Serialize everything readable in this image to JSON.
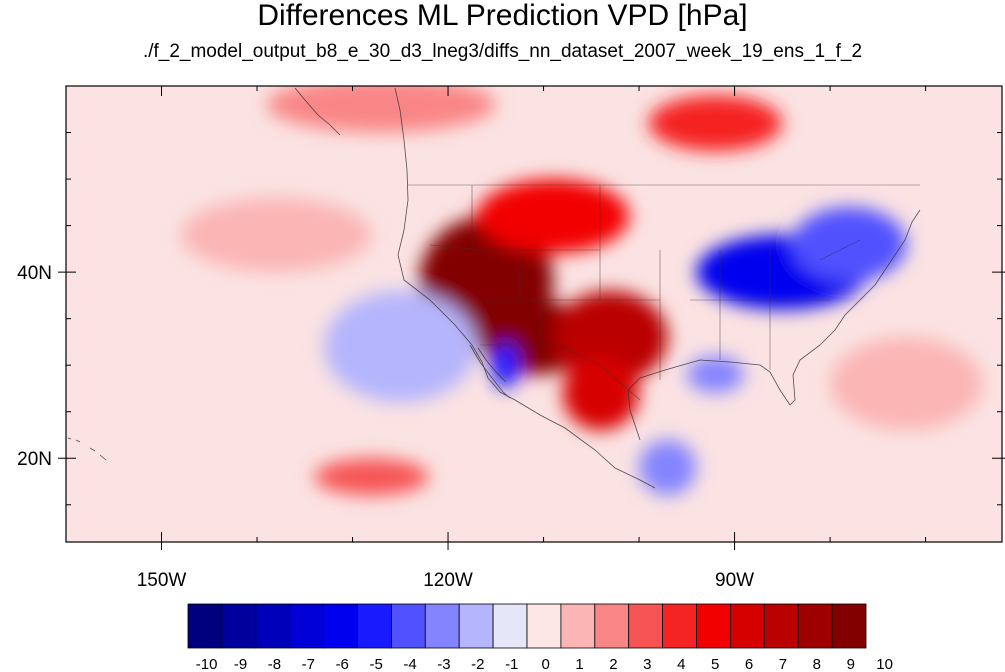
{
  "title": "Differences ML Prediction VPD [hPa]",
  "subtitle": "./f_2_model_output_b8_e_30_d3_lneg3/diffs_nn_dataset_2007_week_19_ens_1_f_2",
  "map": {
    "projection": "equirectangular",
    "lon_range": [
      -160,
      -62
    ],
    "lat_range": [
      11,
      60
    ],
    "lon_ticks": [
      {
        "value": -150,
        "label": "150W"
      },
      {
        "value": -120,
        "label": "120W"
      },
      {
        "value": -90,
        "label": "90W"
      }
    ],
    "lat_ticks": [
      {
        "value": 40,
        "label": "40N"
      },
      {
        "value": 20,
        "label": "20N"
      }
    ],
    "field_regions": [
      {
        "name": "west-us-high",
        "lon": -116,
        "lat": 39,
        "rlon": 7,
        "rlat": 7,
        "level": 10
      },
      {
        "name": "southwest-desert",
        "lon": -111,
        "lat": 33,
        "rlon": 6,
        "rlat": 4,
        "level": 10
      },
      {
        "name": "southern-plains",
        "lon": -103,
        "lat": 33,
        "rlon": 6,
        "rlat": 5,
        "level": 7
      },
      {
        "name": "northern-rockies",
        "lon": -109,
        "lat": 46,
        "rlon": 8,
        "rlat": 4,
        "level": 5
      },
      {
        "name": "mexico-interior",
        "lon": -104,
        "lat": 27,
        "rlon": 4,
        "rlat": 4,
        "level": 6
      },
      {
        "name": "east-us-low",
        "lon": -85,
        "lat": 40,
        "rlon": 9,
        "rlat": 4,
        "level": -6
      },
      {
        "name": "northeast-low",
        "lon": -78,
        "lat": 43,
        "rlon": 6,
        "rlat": 4,
        "level": -4
      },
      {
        "name": "gulf-low",
        "lon": -92,
        "lat": 29,
        "rlon": 3,
        "rlat": 2,
        "level": -3
      },
      {
        "name": "baja-low",
        "lon": -114,
        "lat": 30,
        "rlon": 1.5,
        "rlat": 2.5,
        "level": -5
      },
      {
        "name": "pacific-low",
        "lon": -125,
        "lat": 32,
        "rlon": 8,
        "rlat": 6,
        "level": -2
      },
      {
        "name": "canada-high",
        "lon": -92,
        "lat": 56,
        "rlon": 7,
        "rlat": 3,
        "level": 4
      },
      {
        "name": "alaska-high",
        "lon": -127,
        "lat": 58,
        "rlon": 12,
        "rlat": 3,
        "level": 2
      },
      {
        "name": "pacific-high",
        "lon": -128,
        "lat": 18,
        "rlon": 6,
        "rlat": 2,
        "level": 3
      },
      {
        "name": "pacific-high-north",
        "lon": -138,
        "lat": 44,
        "rlon": 10,
        "rlat": 4,
        "level": 1
      },
      {
        "name": "mexico-low",
        "lon": -97,
        "lat": 19,
        "rlon": 3,
        "rlat": 3,
        "level": -3
      },
      {
        "name": "atlantic-high",
        "lon": -72,
        "lat": 28,
        "rlon": 8,
        "rlat": 5,
        "level": 1
      }
    ]
  },
  "colorbar": {
    "levels": [
      -10,
      -9,
      -8,
      -7,
      -6,
      -5,
      -4,
      -3,
      -2,
      -1,
      0,
      1,
      2,
      3,
      4,
      5,
      6,
      7,
      8,
      9,
      10
    ],
    "labels": [
      "-10",
      "-9",
      "-8",
      "-7",
      "-6",
      "-5",
      "-4",
      "-3",
      "-2",
      "-1",
      "0",
      "1",
      "2",
      "3",
      "4",
      "5",
      "6",
      "7",
      "8",
      "9",
      "10"
    ],
    "colors": [
      "#00007e",
      "#00009c",
      "#0000b9",
      "#0000d6",
      "#0000ee",
      "#1a1aff",
      "#5151ff",
      "#8484ff",
      "#b5b5fd",
      "#e6e6f9",
      "#fde6e6",
      "#fbb5b5",
      "#f98686",
      "#f65454",
      "#f52424",
      "#f20000",
      "#d70000",
      "#ba0000",
      "#9e0000",
      "#820000"
    ]
  }
}
